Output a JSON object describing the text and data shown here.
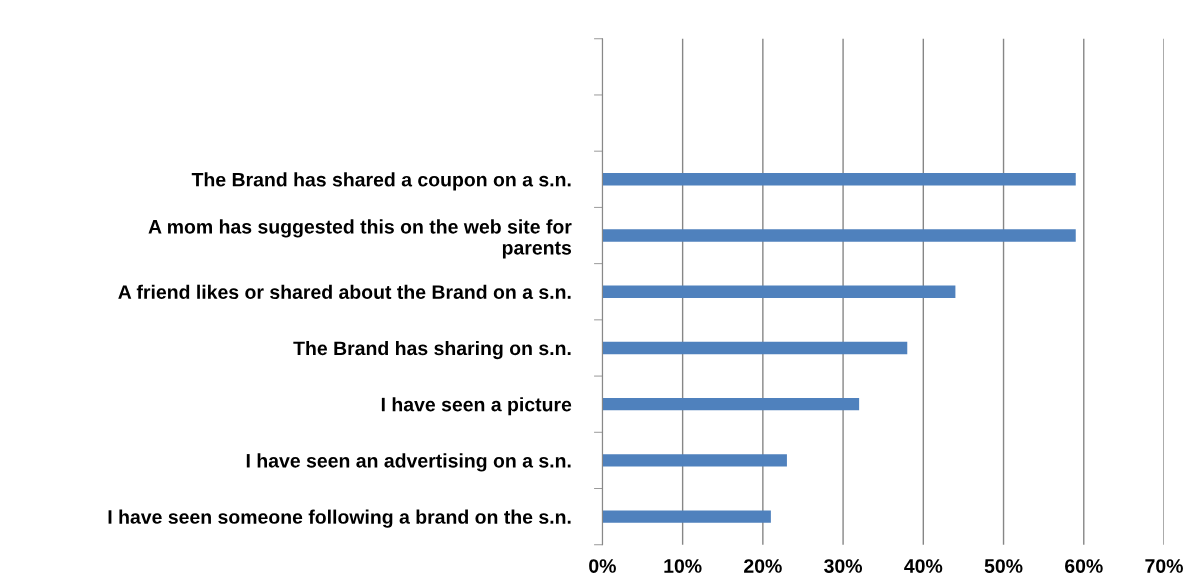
{
  "chart_data": {
    "type": "bar",
    "orientation": "horizontal",
    "categories": [
      null,
      null,
      "The Brand has shared a coupon on a s.n.",
      "A mom has suggested this on the web site for\nparents",
      "A friend likes or shared about the Brand on a s.n.",
      "The Brand has sharing on s.n.",
      "I have seen a picture",
      "I have seen an advertising on a s.n.",
      "I have seen someone following a brand on the s.n."
    ],
    "values": [
      null,
      null,
      59,
      59,
      44,
      38,
      32,
      23,
      21
    ],
    "color": "#4f81bd",
    "xlim": [
      0,
      70
    ],
    "xticks": [
      {
        "value": 0,
        "label": "0%"
      },
      {
        "value": 10,
        "label": "10%"
      },
      {
        "value": 20,
        "label": "20%"
      },
      {
        "value": 30,
        "label": "30%"
      },
      {
        "value": 40,
        "label": "40%"
      },
      {
        "value": 50,
        "label": "50%"
      },
      {
        "value": 60,
        "label": "60%"
      },
      {
        "value": 70,
        "label": "70%"
      }
    ],
    "grid": "x",
    "legend": false
  }
}
